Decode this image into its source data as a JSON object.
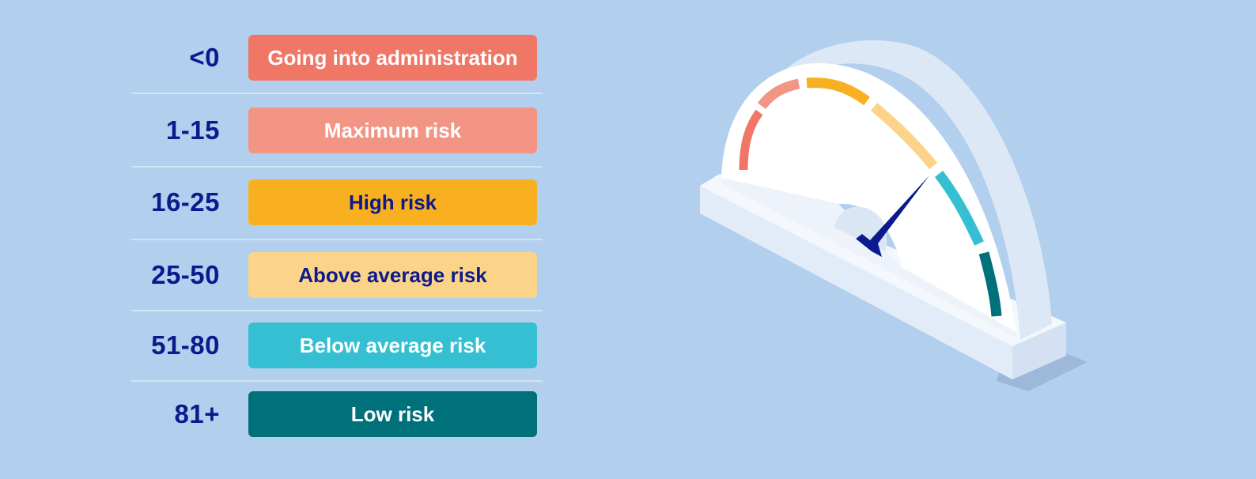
{
  "colors": {
    "background": "#b3cfee",
    "label_text": "#0b1a8c",
    "needle": "#0b1a8c"
  },
  "risk_bands": [
    {
      "range": "<0",
      "label": "Going into administration",
      "color": "#f07766",
      "text_color": "#ffffff"
    },
    {
      "range": "1-15",
      "label": "Maximum risk",
      "color": "#f29585",
      "text_color": "#ffffff"
    },
    {
      "range": "16-25",
      "label": "High risk",
      "color": "#f8b021",
      "text_color": "#0b1a8c"
    },
    {
      "range": "25-50",
      "label": "Above average risk",
      "color": "#fbd48a",
      "text_color": "#0b1a8c"
    },
    {
      "range": "51-80",
      "label": "Below average risk",
      "color": "#34bfd2",
      "text_color": "#ffffff"
    },
    {
      "range": "81+",
      "label": "Low risk",
      "color": "#00707a",
      "text_color": "#ffffff"
    }
  ],
  "gauge": {
    "icon": "speedometer-gauge-icon",
    "needle_band": "Below average risk"
  }
}
